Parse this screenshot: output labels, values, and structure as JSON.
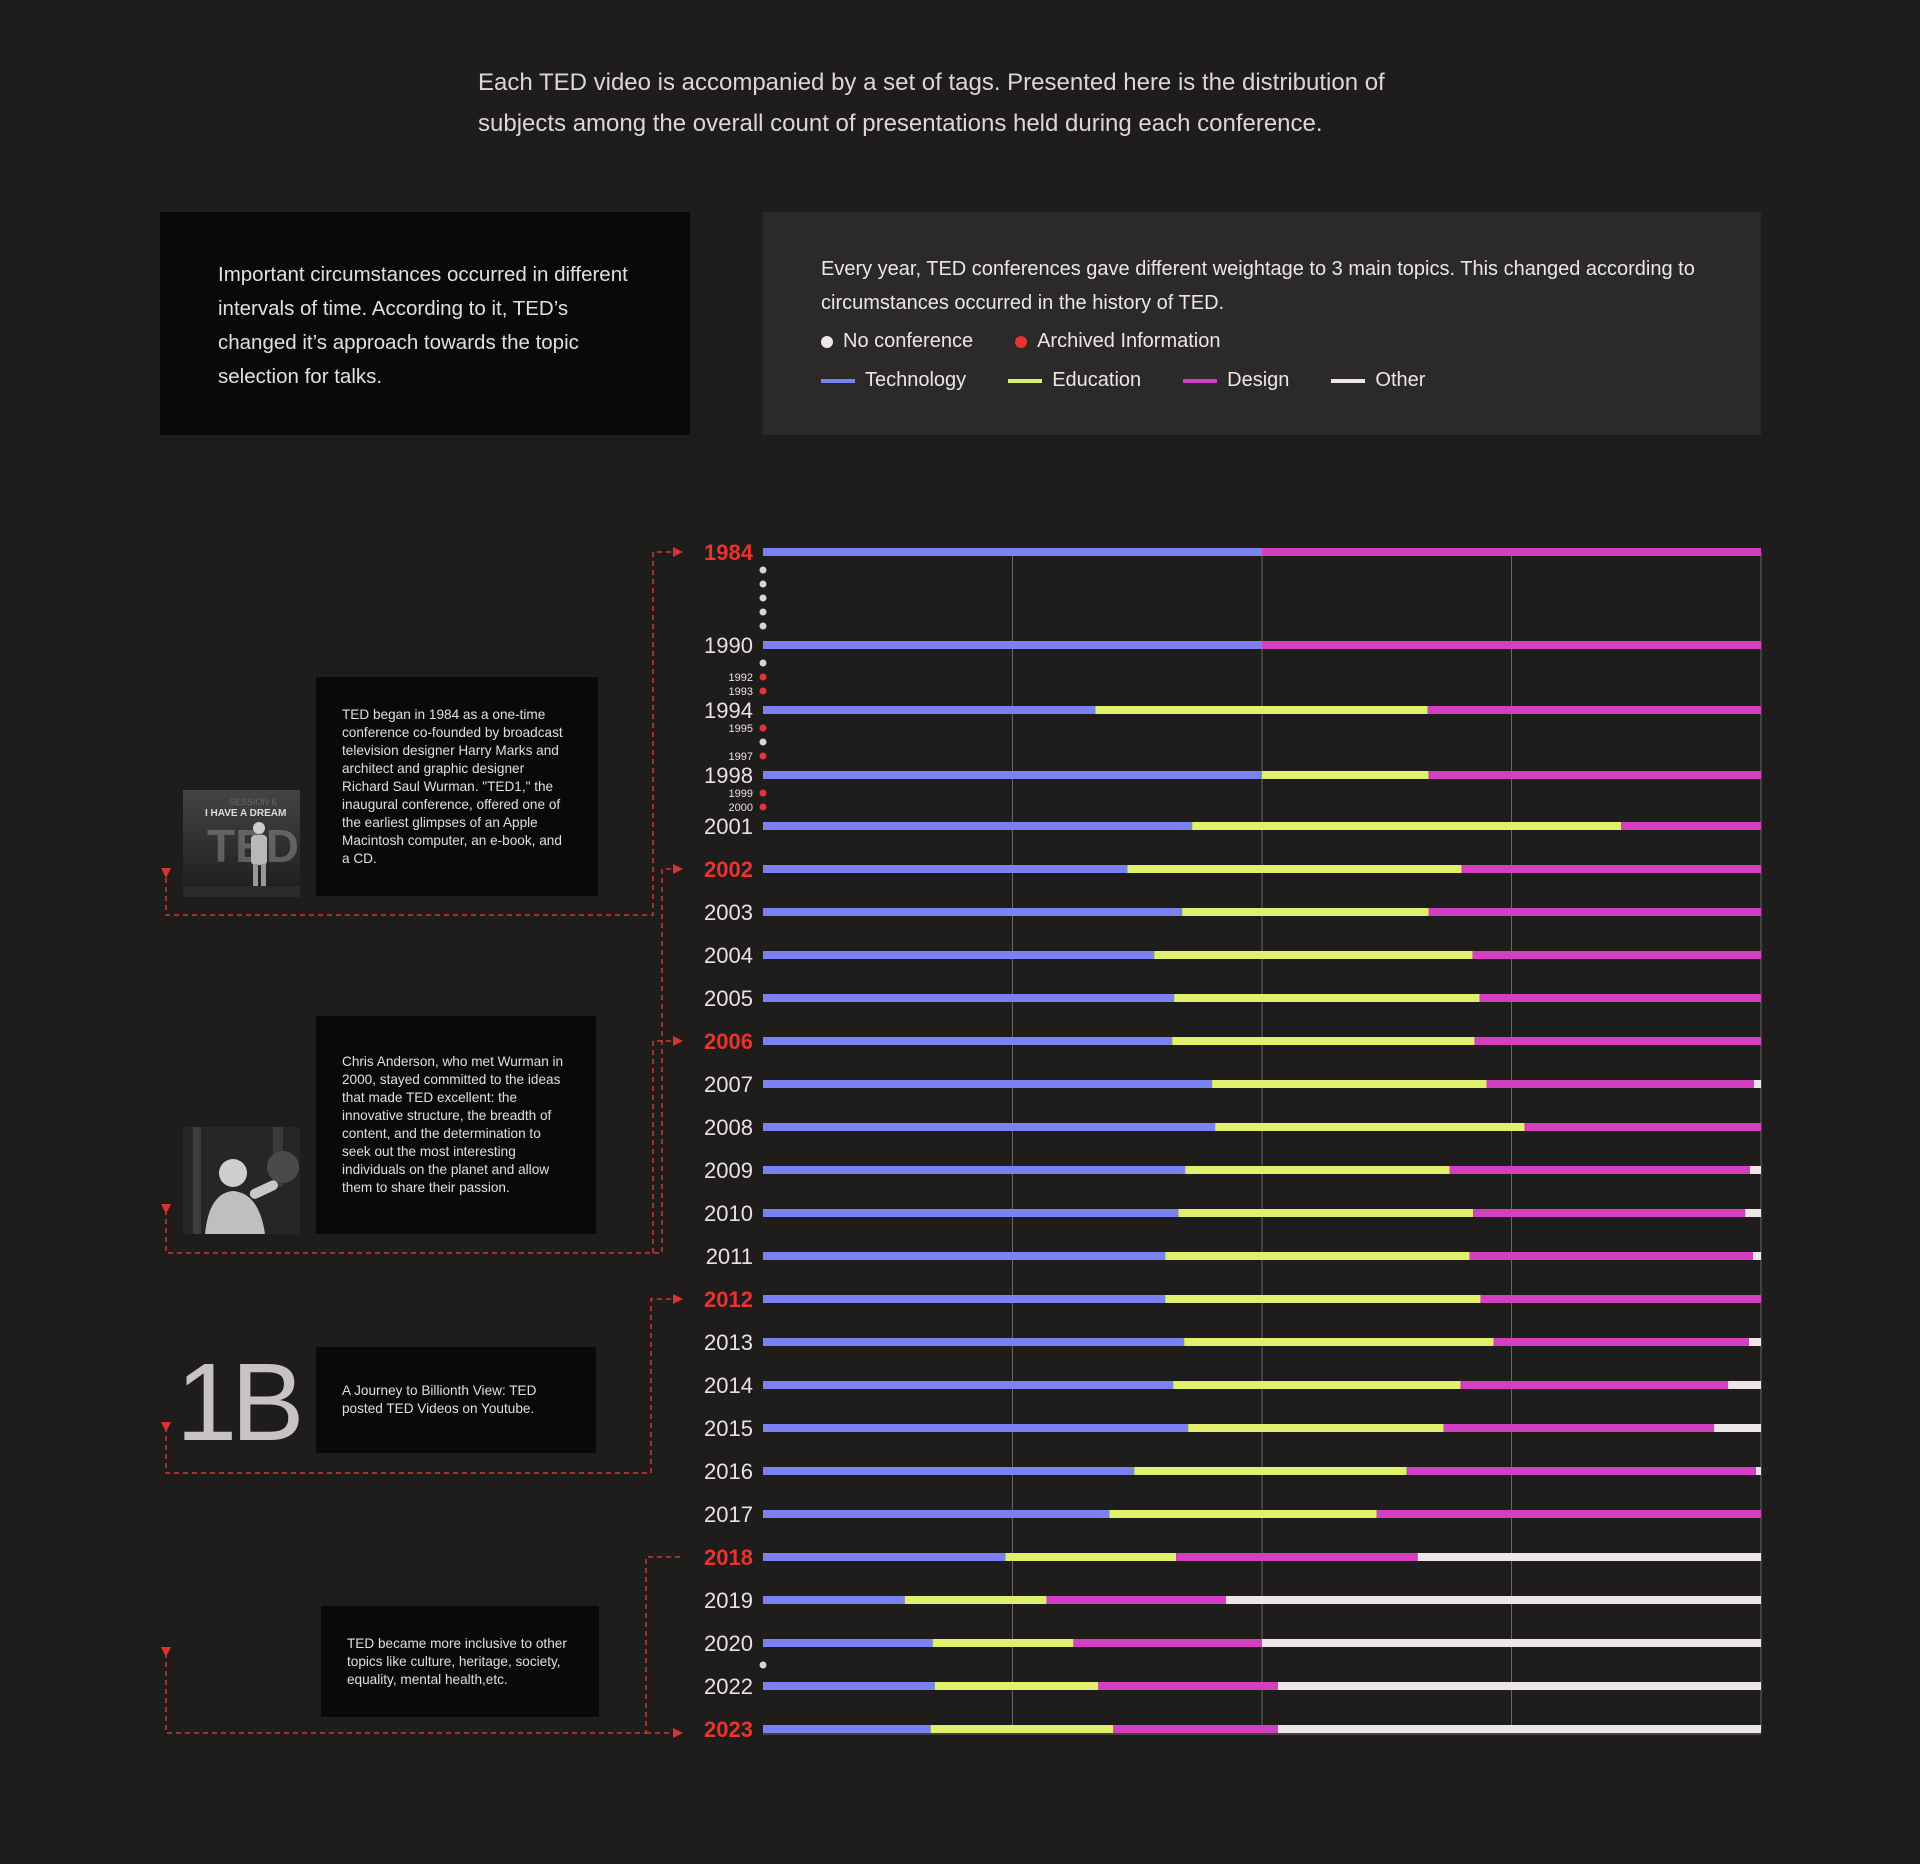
{
  "intro_text": "Each TED video is accompanied by a set of tags. Presented here is the distribution of subjects among the overall count of presentations held during each conference.",
  "left_panel": {
    "text": "Important circumstances occurred in different intervals of time. According to it, TED’s changed it’s approach towards the topic selection for talks."
  },
  "right_panel": {
    "text": "Every year, TED conferences gave different weightage to 3 main topics. This changed according to circumstances occurred in the history of TED.",
    "markers": [
      {
        "label": "No conference",
        "color": "#ece6e6"
      },
      {
        "label": "Archived Information",
        "color": "#e8332f"
      }
    ],
    "topics": [
      {
        "label": "Technology",
        "color": "#7a82f2"
      },
      {
        "label": "Education",
        "color": "#dff06c"
      },
      {
        "label": "Design",
        "color": "#d43ec0"
      },
      {
        "label": "Other",
        "color": "#ece6e6"
      }
    ]
  },
  "notes": {
    "note1": "TED began in 1984 as a one-time conference co-founded by broadcast television designer Harry Marks and architect and graphic designer Richard Saul Wurman. \"TED1,\" the inaugural conference, offered one of the earliest glimpses of an Apple Macintosh computer, an e-book, and a CD.",
    "note2": "Chris Anderson, who met Wurman in 2000, stayed committed to the ideas that made TED excellent: the innovative structure, the breadth of content, and the determination to seek out the most interesting individuals on the planet and allow them to share their passion.",
    "note3": "A Journey to Billionth View: TED posted TED Videos on Youtube.",
    "note4": "TED became more inclusive to other topics like culture, heritage, society, equality, mental health,etc.",
    "big_stat": "1B",
    "photo1_text": "I HAVE A DREAM",
    "photo1_sub": "SESSION 6",
    "photo1_logo": "TED"
  },
  "chart_data": {
    "type": "bar",
    "orientation": "horizontal",
    "stacked": "100%",
    "series_order": [
      "Technology",
      "Education",
      "Design",
      "Other"
    ],
    "colors": {
      "Technology": "#7a82f2",
      "Education": "#dff06c",
      "Design": "#d43ec0",
      "Other": "#ece6e6"
    },
    "rows": [
      {
        "year": "1984",
        "highlight": true,
        "values": [
          50,
          0,
          50,
          0
        ]
      },
      {
        "year": "1990",
        "highlight": false,
        "values": [
          50,
          0,
          50,
          0
        ]
      },
      {
        "year": "1994",
        "highlight": false,
        "values": [
          33.3,
          33.3,
          33.4,
          0
        ]
      },
      {
        "year": "1998",
        "highlight": false,
        "values": [
          50,
          16.7,
          33.3,
          0
        ]
      },
      {
        "year": "2001",
        "highlight": false,
        "values": [
          43,
          43,
          14,
          0
        ]
      },
      {
        "year": "2002",
        "highlight": true,
        "values": [
          36.5,
          33.5,
          30,
          0
        ]
      },
      {
        "year": "2003",
        "highlight": false,
        "values": [
          42,
          24.7,
          33.3,
          0
        ]
      },
      {
        "year": "2004",
        "highlight": false,
        "values": [
          39.2,
          31.9,
          28.9,
          0
        ]
      },
      {
        "year": "2005",
        "highlight": false,
        "values": [
          41.2,
          30.6,
          28.2,
          0
        ]
      },
      {
        "year": "2006",
        "highlight": true,
        "values": [
          41,
          30.3,
          28.7,
          0
        ]
      },
      {
        "year": "2007",
        "highlight": false,
        "values": [
          45,
          27.5,
          26.8,
          0.7
        ]
      },
      {
        "year": "2008",
        "highlight": false,
        "values": [
          45.3,
          31,
          23.7,
          0
        ]
      },
      {
        "year": "2009",
        "highlight": false,
        "values": [
          42.3,
          26.5,
          30.1,
          1.1
        ]
      },
      {
        "year": "2010",
        "highlight": false,
        "values": [
          42,
          29.8,
          27.5,
          1.6
        ]
      },
      {
        "year": "2011",
        "highlight": false,
        "values": [
          40.3,
          30.5,
          28.4,
          0.8
        ]
      },
      {
        "year": "2012",
        "highlight": true,
        "values": [
          40.3,
          31.6,
          28.1,
          0
        ]
      },
      {
        "year": "2013",
        "highlight": false,
        "values": [
          42.2,
          31,
          25.6,
          1.2
        ]
      },
      {
        "year": "2014",
        "highlight": false,
        "values": [
          41.1,
          28.8,
          26.8,
          3.3
        ]
      },
      {
        "year": "2015",
        "highlight": false,
        "values": [
          42.6,
          25.6,
          27.1,
          4.7
        ]
      },
      {
        "year": "2016",
        "highlight": false,
        "values": [
          37.2,
          27.3,
          35,
          0.5
        ]
      },
      {
        "year": "2017",
        "highlight": false,
        "values": [
          34.7,
          26.8,
          38.5,
          0
        ]
      },
      {
        "year": "2018",
        "highlight": true,
        "values": [
          24.3,
          17.1,
          24.2,
          34.4
        ]
      },
      {
        "year": "2019",
        "highlight": false,
        "values": [
          14.2,
          14.2,
          18,
          53.6
        ]
      },
      {
        "year": "2020",
        "highlight": false,
        "values": [
          17,
          14.1,
          18.9,
          50
        ]
      },
      {
        "year": "2022",
        "highlight": false,
        "values": [
          17.2,
          16.4,
          18,
          48.4
        ]
      },
      {
        "year": "2023",
        "highlight": true,
        "values": [
          16.8,
          18.3,
          16.5,
          48.4
        ]
      }
    ],
    "no_conference_years": [
      "1985",
      "1986",
      "1987",
      "1988",
      "1989",
      "1991",
      "1996",
      "2021"
    ],
    "archived_years": [
      "1992",
      "1993",
      "1995",
      "1997",
      "1999",
      "2000"
    ],
    "xlim": [
      0,
      100
    ],
    "gridlines": [
      25,
      50,
      75
    ],
    "title": "",
    "xlabel": "",
    "ylabel": ""
  }
}
